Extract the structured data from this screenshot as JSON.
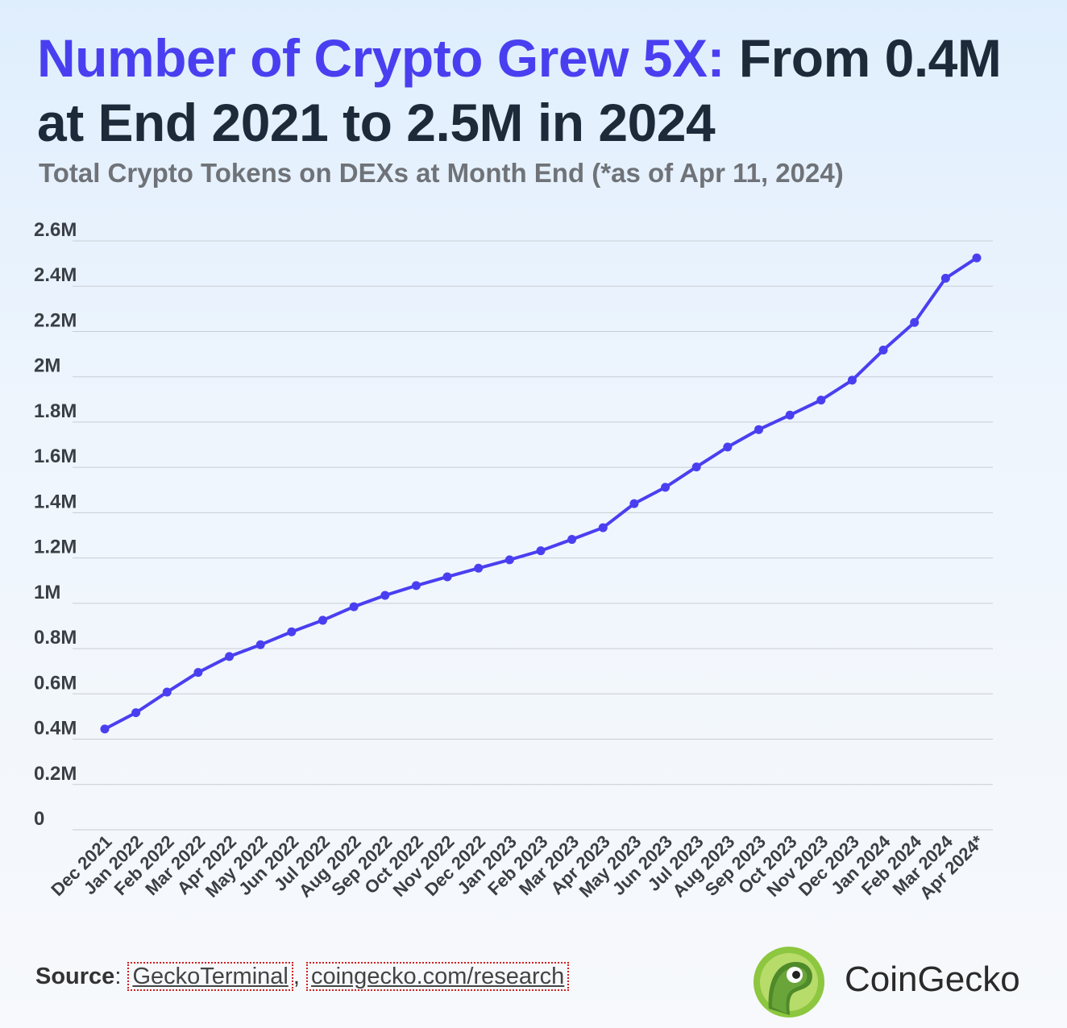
{
  "title": {
    "highlight": "Number of Crypto Grew 5X:",
    "rest": " From 0.4M at End 2021 to 2.5M in 2024"
  },
  "subtitle": "Total Crypto Tokens on DEXs at Month End (*as of Apr 11, 2024)",
  "source": {
    "label": "Source",
    "link1": "GeckoTerminal",
    "link2": "coingecko.com/research"
  },
  "brand": "CoinGecko",
  "colors": {
    "line": "#4a3ff0",
    "highlight": "#4a3ff0",
    "title": "#1c2a3a",
    "grid": "#c9cdd4"
  },
  "chart_data": {
    "type": "line",
    "title": "",
    "xlabel": "",
    "ylabel": "",
    "ylim": [
      0,
      2600000
    ],
    "yticks": [
      0,
      200000,
      400000,
      600000,
      800000,
      1000000,
      1200000,
      1400000,
      1600000,
      1800000,
      2000000,
      2200000,
      2400000,
      2600000
    ],
    "ytick_labels": [
      "0",
      "0.2M",
      "0.4M",
      "0.6M",
      "0.8M",
      "1M",
      "1.2M",
      "1.4M",
      "1.6M",
      "1.8M",
      "2M",
      "2.2M",
      "2.4M",
      "2.6M"
    ],
    "grid": true,
    "categories": [
      "Dec 2021",
      "Jan 2022",
      "Feb 2022",
      "Mar 2022",
      "Apr 2022",
      "May 2022",
      "Jun 2022",
      "Jul 2022",
      "Aug 2022",
      "Sep 2022",
      "Oct 2022",
      "Nov 2022",
      "Dec 2022",
      "Jan 2023",
      "Feb 2023",
      "Mar 2023",
      "Apr 2023",
      "May 2023",
      "Jun 2023",
      "Jul 2023",
      "Aug 2023",
      "Sep 2023",
      "Oct 2023",
      "Nov 2023",
      "Dec 2023",
      "Jan 2024",
      "Feb 2024",
      "Mar 2024",
      "Apr 2024*"
    ],
    "series": [
      {
        "values": [
          445000,
          517000,
          608000,
          695000,
          765000,
          817000,
          874000,
          925000,
          985000,
          1035000,
          1078000,
          1117000,
          1155000,
          1192000,
          1232000,
          1282000,
          1334000,
          1440000,
          1512000,
          1602000,
          1690000,
          1767000,
          1831000,
          1897000,
          1985000,
          2118000,
          2240000,
          2435000,
          2525000
        ]
      }
    ]
  }
}
